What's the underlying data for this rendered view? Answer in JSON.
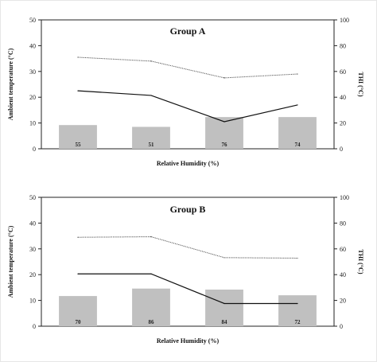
{
  "chart_data": [
    {
      "type": "bar",
      "title": "Group A",
      "xlabel": "Relative Humidity (%)",
      "ylabel": "Ambient temperature (°C)",
      "y2label": "THI (°C)",
      "ylim": [
        0,
        50
      ],
      "y2lim": [
        0,
        100
      ],
      "yticks": [
        "0",
        "10",
        "20",
        "30",
        "40",
        "50"
      ],
      "y2ticks": [
        "0",
        "20",
        "40",
        "60",
        "80",
        "100"
      ],
      "categories": [
        "55",
        "51",
        "76",
        "74"
      ],
      "series": [
        {
          "kind": "bar",
          "axis": "left",
          "color": "#c0c0c0",
          "values": [
            9.2,
            8.5,
            12.3,
            12.3
          ]
        },
        {
          "kind": "line",
          "axis": "left",
          "style": "solid",
          "color": "#111111",
          "values": [
            22.5,
            20.7,
            10.5,
            17
          ]
        },
        {
          "kind": "line",
          "axis": "left",
          "style": "dotted",
          "color": "#555555",
          "values": [
            35.5,
            34,
            27.5,
            29
          ]
        }
      ],
      "data_labels": [
        "55",
        "51",
        "76",
        "74"
      ]
    },
    {
      "type": "bar",
      "title": "Group B",
      "xlabel": "Relative Humidity (%)",
      "ylabel": "Ambient temperature (°C)",
      "y2label": "THI (°C)",
      "ylim": [
        0,
        50
      ],
      "y2lim": [
        0,
        100
      ],
      "yticks": [
        "0",
        "10",
        "20",
        "30",
        "40",
        "50"
      ],
      "y2ticks": [
        "0",
        "20",
        "40",
        "60",
        "80",
        "100"
      ],
      "categories": [
        "70",
        "86",
        "84",
        "72"
      ],
      "series": [
        {
          "kind": "bar",
          "axis": "left",
          "color": "#c0c0c0",
          "values": [
            11.7,
            14.6,
            14.2,
            12
          ]
        },
        {
          "kind": "line",
          "axis": "left",
          "style": "solid",
          "color": "#111111",
          "values": [
            20.3,
            20.3,
            8.8,
            8.8
          ]
        },
        {
          "kind": "line",
          "axis": "left",
          "style": "dotted",
          "color": "#555555",
          "values": [
            34.5,
            34.7,
            26.6,
            26.4
          ]
        }
      ],
      "data_labels": [
        "70",
        "86",
        "84",
        "72"
      ]
    }
  ]
}
